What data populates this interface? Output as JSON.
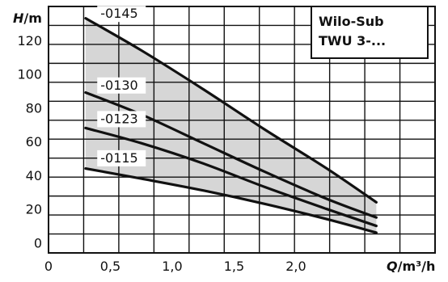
{
  "chart_data": {
    "type": "line",
    "title": "",
    "xlabel": {
      "symbol": "Q",
      "unit": "/m³/h"
    },
    "ylabel": {
      "symbol": "H",
      "unit": "/m"
    },
    "xlim": [
      0,
      2.5
    ],
    "ylim": [
      -6,
      140
    ],
    "xticks": [
      0,
      0.5,
      1.0,
      1.5,
      2.0
    ],
    "xtick_labels": [
      "0",
      "0,5",
      "1,0",
      "1,5",
      "2,0"
    ],
    "yticks": [
      0,
      20,
      40,
      60,
      80,
      100,
      120
    ],
    "ytick_labels": [
      "0",
      "20",
      "40",
      "60",
      "80",
      "100",
      "120"
    ],
    "grid": true,
    "legend_box": {
      "line1": "Wilo-Sub",
      "line2": "TWU 3-..."
    },
    "operating_range_fill": "#d6d6d6",
    "line_color": "#111111",
    "series": [
      {
        "name": "-0145",
        "x": [
          0.3,
          0.75,
          1.25,
          1.75,
          2.25,
          2.65
        ],
        "y": [
          133,
          114,
          91,
          67,
          44,
          24
        ]
      },
      {
        "name": "-0130",
        "x": [
          0.3,
          0.75,
          1.25,
          1.75,
          2.25,
          2.65
        ],
        "y": [
          89,
          76,
          59,
          42,
          26,
          15
        ]
      },
      {
        "name": "-0123",
        "x": [
          0.3,
          0.75,
          1.25,
          1.75,
          2.25,
          2.65
        ],
        "y": [
          68,
          59,
          47,
          33,
          20,
          10
        ]
      },
      {
        "name": "-0115",
        "x": [
          0.3,
          0.75,
          1.25,
          1.75,
          2.25,
          2.65
        ],
        "y": [
          44,
          38,
          31,
          23,
          14,
          6
        ]
      }
    ]
  }
}
